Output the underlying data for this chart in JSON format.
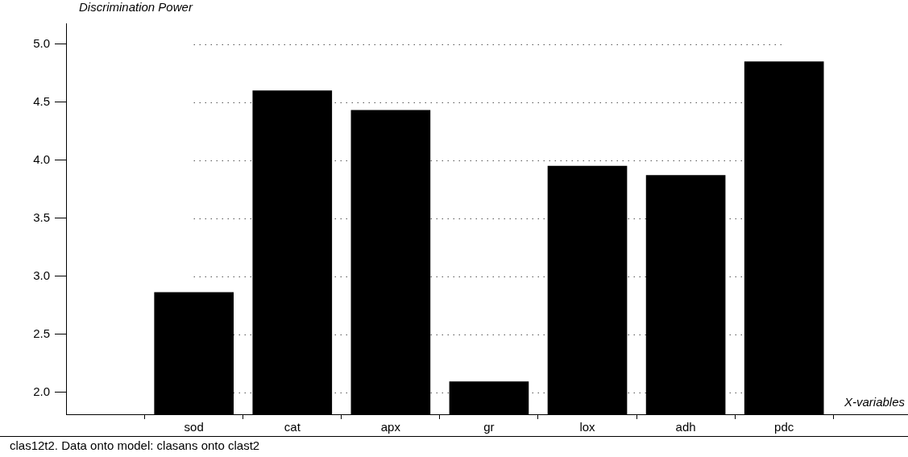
{
  "chart_data": {
    "type": "bar",
    "ylabel": "Discrimination Power",
    "xlabel": "X-variables",
    "annotations": [
      "clas12t2. Data onto model: clasans onto clast2"
    ],
    "categories": [
      "sod",
      "cat",
      "apx",
      "gr",
      "lox",
      "adh",
      "pdc"
    ],
    "values": [
      2.86,
      4.6,
      4.43,
      2.09,
      3.95,
      3.87,
      4.85
    ],
    "color": "#000000",
    "ylim": [
      1.81,
      5.18
    ],
    "yticks": [
      {
        "value": 2,
        "label": "2.0"
      },
      {
        "value": 2.5,
        "label": "2.5"
      },
      {
        "value": 3,
        "label": "3.0"
      },
      {
        "value": 3.5,
        "label": "3.5"
      },
      {
        "value": 4,
        "label": "4.0"
      },
      {
        "value": 4.5,
        "label": "4.5"
      },
      {
        "value": 5,
        "label": "5.0"
      }
    ],
    "grid": "y",
    "legend": false
  }
}
